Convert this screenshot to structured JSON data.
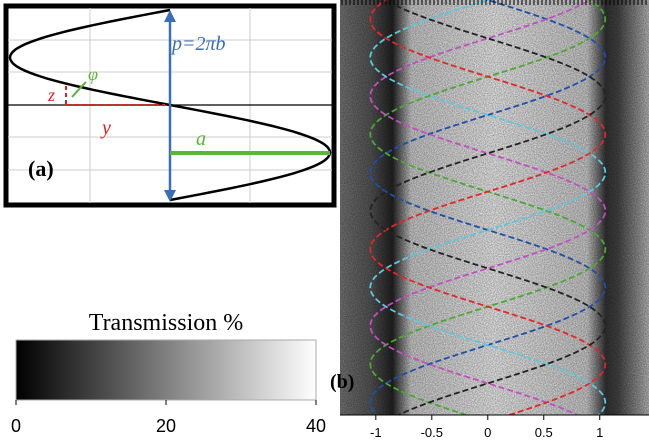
{
  "panel_a": {
    "label": "(a)",
    "pitch_label": "p=2πb",
    "angle_label": "φ",
    "z_label": "z",
    "y_label": "y",
    "radius_label": "a"
  },
  "colorbar": {
    "title": "Transmission %",
    "lim": [
      0,
      40
    ],
    "ticks": [
      0,
      20,
      40
    ]
  },
  "panel_b": {
    "label": "(b)",
    "xlim": [
      -1.32,
      1.44
    ],
    "xticks": [
      -1,
      -0.5,
      0,
      0.5,
      1
    ]
  }
}
